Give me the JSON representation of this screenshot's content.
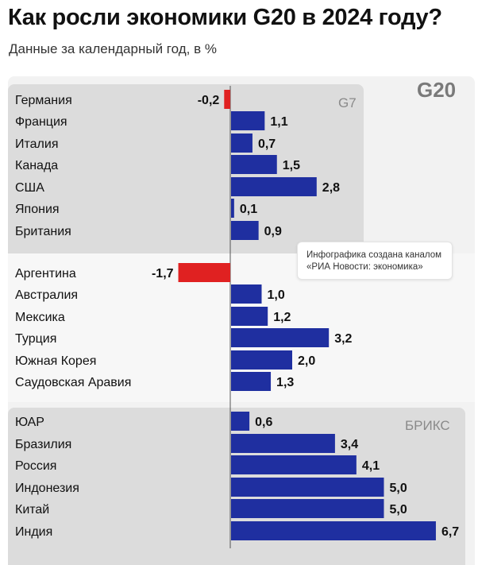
{
  "header": {
    "title": "Как росли экономики G20 в 2024 году?",
    "subtitle": "Данные за календарный год, в %"
  },
  "groups": {
    "g20_label": "G20",
    "g7_label": "G7",
    "brics_label": "БРИКС"
  },
  "credit": {
    "line1": "Инфографика создана каналом",
    "line2": "«РИА Новости: экономика»"
  },
  "colors": {
    "positive": "#1f2fa0",
    "negative": "#e02121",
    "axis": "#555555"
  },
  "chart_data": {
    "type": "bar",
    "orientation": "horizontal",
    "title": "Как росли экономики G20 в 2024 году?",
    "subtitle": "Данные за календарный год, в %",
    "xlabel": "",
    "ylabel": "",
    "unit": "%",
    "categories": [
      "Германия",
      "Франция",
      "Италия",
      "Канада",
      "США",
      "Япония",
      "Британия",
      "Аргентина",
      "Австралия",
      "Мексика",
      "Турция",
      "Южная Корея",
      "Саудовская Аравия",
      "ЮАР",
      "Бразилия",
      "Россия",
      "Индонезия",
      "Китай",
      "Индия"
    ],
    "values": [
      -0.2,
      1.1,
      0.7,
      1.5,
      2.8,
      0.1,
      0.9,
      -1.7,
      1.0,
      1.2,
      3.2,
      2.0,
      1.3,
      0.6,
      3.4,
      4.1,
      5.0,
      5.0,
      6.7
    ],
    "value_labels": [
      "-0,2",
      "1,1",
      "0,7",
      "1,5",
      "2,8",
      "0,1",
      "0,9",
      "-1,7",
      "1,0",
      "1,2",
      "3,2",
      "2,0",
      "1,3",
      "0,6",
      "3,4",
      "4,1",
      "5,0",
      "5,0",
      "6,7"
    ],
    "groups": [
      {
        "name": "G7",
        "members": [
          "Германия",
          "Франция",
          "Италия",
          "Канада",
          "США",
          "Япония",
          "Британия"
        ]
      },
      {
        "name": "",
        "members": [
          "Аргентина",
          "Австралия",
          "Мексика",
          "Турция",
          "Южная Корея",
          "Саудовская Аравия"
        ]
      },
      {
        "name": "БРИКС",
        "members": [
          "ЮАР",
          "Бразилия",
          "Россия",
          "Индонезия",
          "Китай",
          "Индия"
        ]
      }
    ],
    "xlim": [
      -1.7,
      6.7
    ],
    "grid": false,
    "legend": "none"
  }
}
